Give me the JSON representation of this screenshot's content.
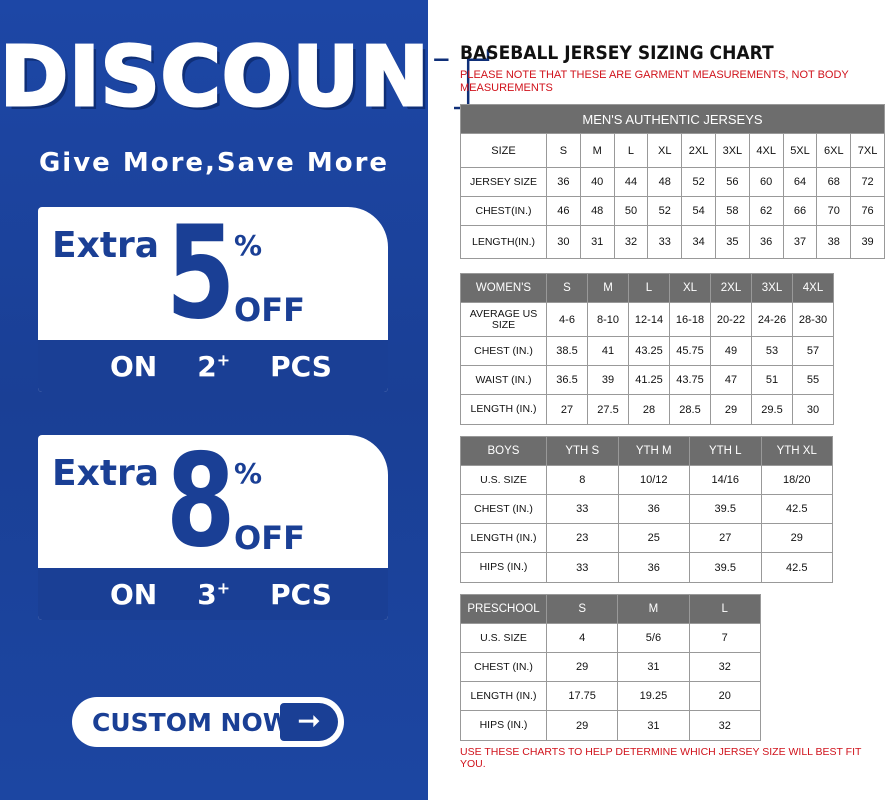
{
  "promo": {
    "headline": "DISCOUNT",
    "tagline": "Give More,Save More",
    "offers": [
      {
        "prefix": "Extra",
        "value": "5",
        "percent": "%",
        "off": "OFF",
        "on": "ON",
        "qty": "2",
        "plus": "+",
        "unit": "PCS"
      },
      {
        "prefix": "Extra",
        "value": "8",
        "percent": "%",
        "off": "OFF",
        "on": "ON",
        "qty": "3",
        "plus": "+",
        "unit": "PCS"
      }
    ],
    "cta": "CUSTOM NOW",
    "cta_icon": "arrow-right-icon",
    "colors": {
      "brand_blue": "#1a3f95",
      "header_gray": "#6d6d6d",
      "note_red": "#d0121b"
    }
  },
  "chart": {
    "title": "BASEBALL JERSEY SIZING CHART",
    "note": "PLEASE NOTE THAT THESE ARE GARMENT MEASUREMENTS, NOT BODY MEASUREMENTS",
    "footer": "USE THESE CHARTS TO HELP DETERMINE WHICH JERSEY SIZE WILL BEST FIT YOU.",
    "tables": [
      {
        "caption": "MEN'S AUTHENTIC JERSEYS",
        "header": [
          "SIZE",
          "S",
          "M",
          "L",
          "XL",
          "2XL",
          "3XL",
          "4XL",
          "5XL",
          "6XL",
          "7XL"
        ],
        "rows": [
          [
            "JERSEY SIZE",
            "36",
            "40",
            "44",
            "48",
            "52",
            "56",
            "60",
            "64",
            "68",
            "72"
          ],
          [
            "CHEST(IN.)",
            "46",
            "48",
            "50",
            "52",
            "54",
            "58",
            "62",
            "66",
            "70",
            "76"
          ],
          [
            "LENGTH(IN.)",
            "30",
            "31",
            "32",
            "33",
            "34",
            "35",
            "36",
            "37",
            "38",
            "39"
          ]
        ]
      },
      {
        "header": [
          "WOMEN'S",
          "S",
          "M",
          "L",
          "XL",
          "2XL",
          "3XL",
          "4XL"
        ],
        "rows": [
          [
            "AVERAGE US SIZE",
            "4-6",
            "8-10",
            "12-14",
            "16-18",
            "20-22",
            "24-26",
            "28-30"
          ],
          [
            "CHEST (IN.)",
            "38.5",
            "41",
            "43.25",
            "45.75",
            "49",
            "53",
            "57"
          ],
          [
            "WAIST (IN.)",
            "36.5",
            "39",
            "41.25",
            "43.75",
            "47",
            "51",
            "55"
          ],
          [
            "LENGTH (IN.)",
            "27",
            "27.5",
            "28",
            "28.5",
            "29",
            "29.5",
            "30"
          ]
        ]
      },
      {
        "header": [
          "BOYS",
          "YTH S",
          "YTH M",
          "YTH L",
          "YTH XL"
        ],
        "rows": [
          [
            "U.S. SIZE",
            "8",
            "10/12",
            "14/16",
            "18/20"
          ],
          [
            "CHEST (IN.)",
            "33",
            "36",
            "39.5",
            "42.5"
          ],
          [
            "LENGTH (IN.)",
            "23",
            "25",
            "27",
            "29"
          ],
          [
            "HIPS (IN.)",
            "33",
            "36",
            "39.5",
            "42.5"
          ]
        ]
      },
      {
        "header": [
          "PRESCHOOL",
          "S",
          "M",
          "L"
        ],
        "rows": [
          [
            "U.S. SIZE",
            "4",
            "5/6",
            "7"
          ],
          [
            "CHEST (IN.)",
            "29",
            "31",
            "32"
          ],
          [
            "LENGTH (IN.)",
            "17.75",
            "19.25",
            "20"
          ],
          [
            "HIPS (IN.)",
            "29",
            "31",
            "32"
          ]
        ]
      }
    ]
  }
}
